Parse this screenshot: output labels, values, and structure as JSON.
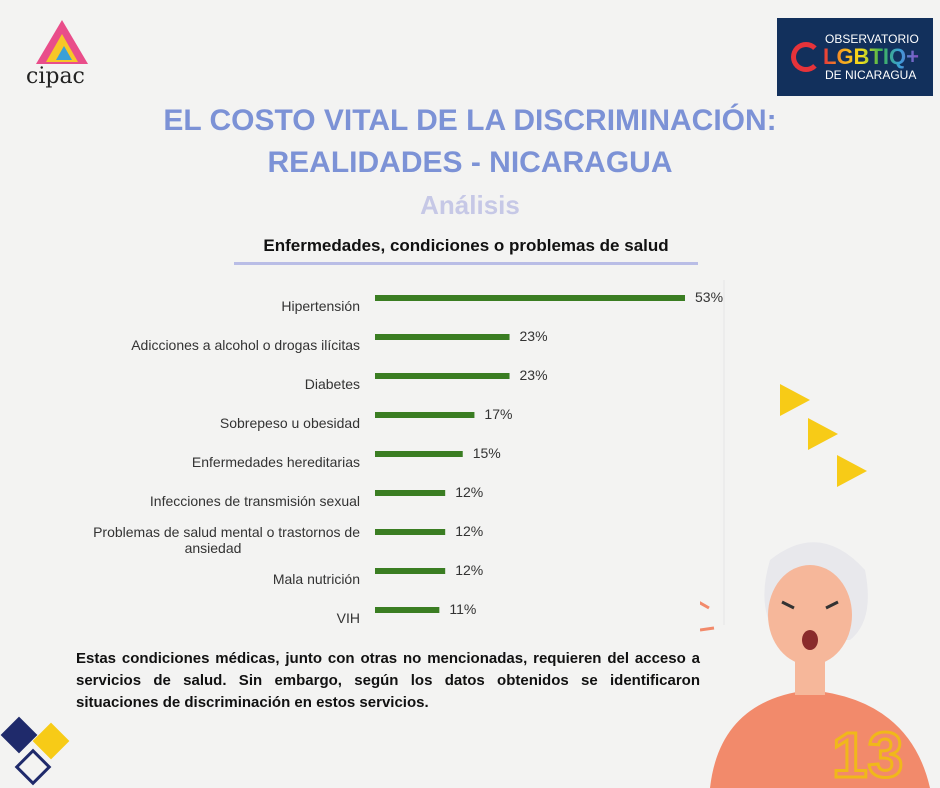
{
  "logos": {
    "left_text": "cipac",
    "right_lines": [
      "OBSERVATORIO",
      "LGBTIQ+",
      "DE NICARAGUA"
    ]
  },
  "header": {
    "title_line1": "EL COSTO VITAL DE LA DISCRIMINACIÓN:",
    "title_line2": "REALIDADES - NICARAGUA",
    "subtitle": "Análisis"
  },
  "chart_data": {
    "type": "bar",
    "orientation": "horizontal",
    "title": "Enfermedades, condiciones o problemas de salud",
    "categories": [
      "Hipertensión",
      "Adicciones a alcohol o drogas ilícitas",
      "Diabetes",
      "Sobrepeso u obesidad",
      "Enfermedades hereditarias",
      "Infecciones de transmisión sexual",
      "Problemas de salud mental o trastornos de ansiedad",
      "Mala nutrición",
      "VIH"
    ],
    "values": [
      53,
      23,
      23,
      17,
      15,
      12,
      12,
      12,
      11
    ],
    "labels": [
      "53%",
      "23%",
      "23%",
      "17%",
      "15%",
      "12%",
      "12%",
      "12%",
      "11%"
    ],
    "unit": "%",
    "bar_color": "#3a7d22",
    "grid": false
  },
  "body_text": "Estas condiciones médicas, junto con otras no mencionadas, requieren del acceso a servicios de salud. Sin embargo, según los datos obtenidos se identificaron situaciones de discriminación en estos servicios.",
  "page_number": "13",
  "colors": {
    "title": "#7c92d6",
    "subtitle": "#c6c8e6",
    "accent_yellow": "#f7cb17",
    "navy": "#12305c"
  }
}
